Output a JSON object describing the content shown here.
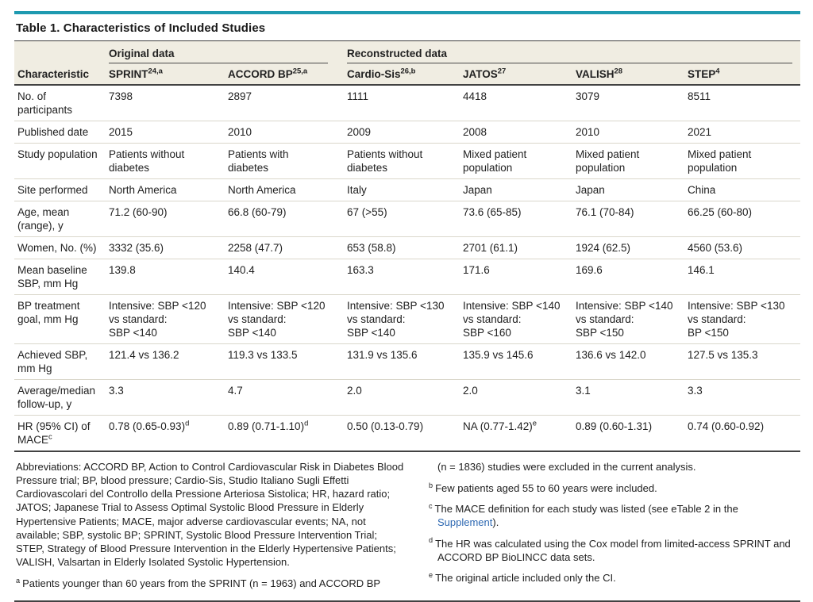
{
  "title": "Table 1. Characteristics of Included Studies",
  "colors": {
    "accent_teal": "#1E9AB0",
    "header_band_bg": "#F0EDE2",
    "dark_rule": "#424242",
    "row_separator": "#DAD7CB",
    "link_blue": "#2D68B2",
    "text": "#212121"
  },
  "table": {
    "group_headers": [
      {
        "label": "Original data",
        "span": 2
      },
      {
        "label": "Reconstructed data",
        "span": 4
      }
    ],
    "columns": [
      "Characteristic",
      "SPRINT^{24,a}",
      "ACCORD BP^{25,a}",
      "Cardio-Sis^{26,b}",
      "JATOS^{27}",
      "VALISH^{28}",
      "STEP^{4}"
    ],
    "rows": [
      {
        "characteristic": "No. of\nparticipants",
        "values": [
          "7398",
          "2897",
          "1111",
          "4418",
          "3079",
          "8511"
        ]
      },
      {
        "characteristic": "Published date",
        "values": [
          "2015",
          "2010",
          "2009",
          "2008",
          "2010",
          "2021"
        ]
      },
      {
        "characteristic": "Study population",
        "values": [
          "Patients without\ndiabetes",
          "Patients with\ndiabetes",
          "Patients without\ndiabetes",
          "Mixed patient\npopulation",
          "Mixed patient\npopulation",
          "Mixed patient\npopulation"
        ]
      },
      {
        "characteristic": "Site performed",
        "values": [
          "North America",
          "North America",
          "Italy",
          "Japan",
          "Japan",
          "China"
        ]
      },
      {
        "characteristic": "Age, mean\n(range), y",
        "values": [
          "71.2 (60-90)",
          "66.8 (60-79)",
          "67 (>55)",
          "73.6 (65-85)",
          "76.1 (70-84)",
          "66.25 (60-80)"
        ]
      },
      {
        "characteristic": "Women, No. (%)",
        "values": [
          "3332 (35.6)",
          "2258 (47.7)",
          "653 (58.8)",
          "2701 (61.1)",
          "1924 (62.5)",
          "4560 (53.6)"
        ]
      },
      {
        "characteristic": "Mean baseline\nSBP, mm Hg",
        "values": [
          "139.8",
          "140.4",
          "163.3",
          "171.6",
          "169.6",
          "146.1"
        ]
      },
      {
        "characteristic": "BP treatment\ngoal, mm Hg",
        "values": [
          "Intensive: SBP <120\nvs standard:\nSBP <140",
          "Intensive: SBP <120\nvs standard:\nSBP <140",
          "Intensive: SBP <130\nvs standard:\nSBP <140",
          "Intensive: SBP <140\nvs standard:\nSBP <160",
          "Intensive: SBP <140\nvs standard:\nSBP <150",
          "Intensive: SBP <130\nvs standard:\nBP <150"
        ]
      },
      {
        "characteristic": "Achieved SBP,\nmm Hg",
        "values": [
          "121.4 vs 136.2",
          "119.3 vs 133.5",
          "131.9 vs 135.6",
          "135.9 vs 145.6",
          "136.6 vs 142.0",
          "127.5 vs 135.3"
        ]
      },
      {
        "characteristic": "Average/median\nfollow-up, y",
        "values": [
          "3.3",
          "4.7",
          "2.0",
          "2.0",
          "3.1",
          "3.3"
        ]
      },
      {
        "characteristic": "HR (95% CI) of\nMACE^{c}",
        "values": [
          "0.78 (0.65-0.93)^{d}",
          "0.89 (0.71-1.10)^{d}",
          "0.50 (0.13-0.79)",
          "NA (0.77-1.42)^{e}",
          "0.89 (0.60-1.31)",
          "0.74 (0.60-0.92)"
        ]
      }
    ]
  },
  "footnotes": {
    "abbreviations": "Abbreviations: ACCORD BP, Action to Control Cardiovascular Risk in Diabetes Blood Pressure trial; BP, blood pressure; Cardio-Sis, Studio Italiano Sugli Effetti Cardiovascolari del Controllo della Pressione Arteriosa Sistolica; HR, hazard ratio; JATOS; Japanese Trial to Assess Optimal Systolic Blood Pressure in Elderly Hypertensive Patients; MACE, major adverse cardiovascular events; NA, not available; SBP, systolic BP; SPRINT, Systolic Blood Pressure Intervention Trial; STEP, Strategy of Blood Pressure Intervention in the Elderly Hypertensive Patients; VALISH, Valsartan in Elderly Isolated Systolic Hypertension.",
    "a_marker": "a",
    "a_text": "Patients younger than 60 years from the SPRINT (n = 1963) and ACCORD BP",
    "a_continuation": "(n = 1836) studies were excluded in the current analysis.",
    "b_marker": "b",
    "b_text": "Few patients aged 55 to 60 years were included.",
    "c_marker": "c",
    "c_text_before": "The MACE definition for each study was listed (see eTable 2 in the ",
    "c_link": "Supplement",
    "c_text_after": ").",
    "d_marker": "d",
    "d_text": "The HR was calculated using the Cox model from limited-access SPRINT and ACCORD BP BioLINCC data sets.",
    "e_marker": "e",
    "e_text": "The original article included only the CI."
  }
}
